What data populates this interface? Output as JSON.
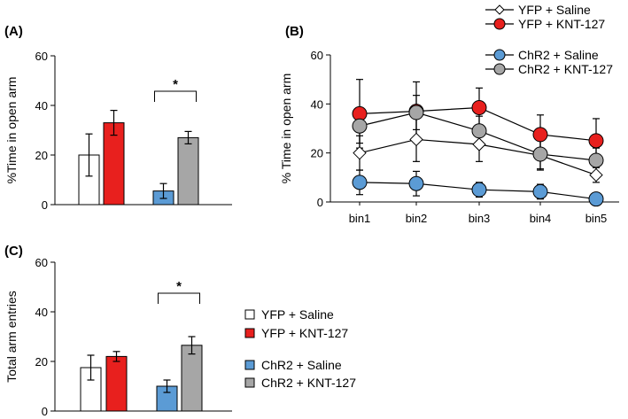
{
  "colors": {
    "yfp_saline": "#ffffff",
    "yfp_knt": "#e8201e",
    "chr2_saline": "#5b9bd5",
    "chr2_knt": "#a6a6a6",
    "stroke": "#000000"
  },
  "chart_data": [
    {
      "panel": "(A)",
      "type": "bar",
      "ylabel": "%Time in open arm",
      "ylim": [
        0,
        60
      ],
      "yticks": [
        0,
        20,
        40,
        60
      ],
      "series": [
        {
          "name": "YFP + Saline",
          "value": 20,
          "error": 8.5
        },
        {
          "name": "YFP + KNT-127",
          "value": 33,
          "error": 5
        },
        {
          "name": "ChR2 + Saline",
          "value": 5.5,
          "error": 3
        },
        {
          "name": "ChR2 + KNT-127",
          "value": 27,
          "error": 2.5
        }
      ],
      "significance": {
        "label": "*",
        "between": [
          "ChR2 + Saline",
          "ChR2 + KNT-127"
        ]
      }
    },
    {
      "panel": "(B)",
      "type": "line",
      "ylabel": "% Time in open arm",
      "ylim": [
        0,
        60
      ],
      "yticks": [
        0,
        20,
        40,
        60
      ],
      "categories": [
        "bin1",
        "bin2",
        "bin3",
        "bin4",
        "bin5"
      ],
      "series": [
        {
          "name": "YFP + Saline",
          "marker": "diamond",
          "values": [
            20,
            25.5,
            23.5,
            19,
            11
          ],
          "errors": [
            7,
            9,
            7,
            6,
            3
          ]
        },
        {
          "name": "YFP + KNT-127",
          "marker": "circle",
          "values": [
            36,
            37,
            38.5,
            27.5,
            25
          ],
          "errors": [
            14,
            12,
            8,
            8,
            9
          ]
        },
        {
          "name": "ChR2 + Saline",
          "marker": "circle",
          "values": [
            8,
            7.5,
            5,
            4.2,
            1.2
          ],
          "errors": [
            5,
            5,
            3,
            3,
            1.5
          ]
        },
        {
          "name": "ChR2 + KNT-127",
          "marker": "circle",
          "values": [
            31,
            36.5,
            29,
            19.5,
            17
          ],
          "errors": [
            7,
            7,
            6,
            6,
            5
          ]
        }
      ]
    },
    {
      "panel": "(C)",
      "type": "bar",
      "ylabel": "Total arm entries",
      "ylim": [
        0,
        60
      ],
      "yticks": [
        0,
        20,
        40,
        60
      ],
      "series": [
        {
          "name": "YFP + Saline",
          "value": 17.5,
          "error": 5
        },
        {
          "name": "YFP + KNT-127",
          "value": 22,
          "error": 2
        },
        {
          "name": "ChR2 + Saline",
          "value": 10,
          "error": 2.5
        },
        {
          "name": "ChR2 + KNT-127",
          "value": 26.5,
          "error": 3.5
        }
      ],
      "significance": {
        "label": "*",
        "between": [
          "ChR2 + Saline",
          "ChR2 + KNT-127"
        ]
      }
    }
  ],
  "legend_line": [
    "YFP + Saline",
    "YFP + KNT-127",
    "ChR2 + Saline",
    "ChR2 + KNT-127"
  ],
  "legend_bar": [
    "YFP + Saline",
    "YFP + KNT-127",
    "ChR2 + Saline",
    "ChR2 + KNT-127"
  ]
}
